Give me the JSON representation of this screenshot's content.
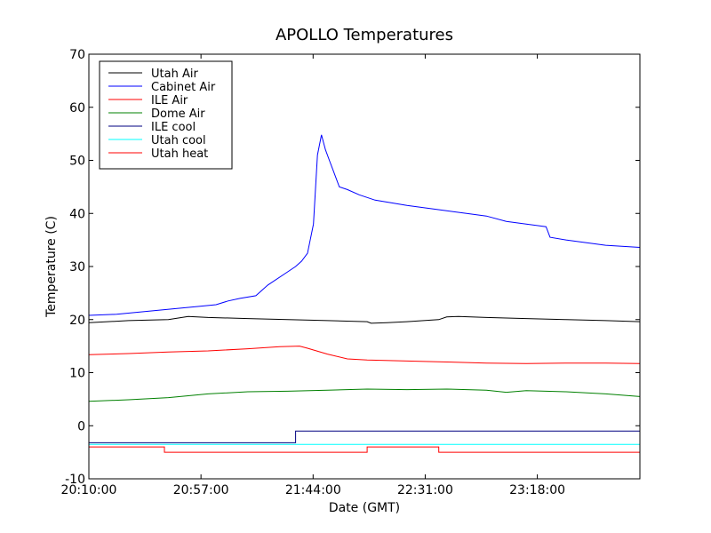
{
  "chart_data": {
    "type": "line",
    "title": "APOLLO Temperatures",
    "xlabel": "Date (GMT)",
    "ylabel": "Temperature (C)",
    "xlim": [
      0,
      13860
    ],
    "ylim": [
      -10,
      70
    ],
    "x_ticks": [
      {
        "value": 0,
        "label": "20:10:00"
      },
      {
        "value": 2820,
        "label": "20:57:00"
      },
      {
        "value": 5640,
        "label": "21:44:00"
      },
      {
        "value": 8460,
        "label": "22:31:00"
      },
      {
        "value": 11280,
        "label": "23:18:00"
      }
    ],
    "y_ticks": [
      -10,
      0,
      10,
      20,
      30,
      40,
      50,
      60,
      70
    ],
    "grid": false,
    "legend_position": "top-left",
    "series": [
      {
        "name": "Utah Air",
        "color": "#000000",
        "x": [
          0,
          1000,
          2000,
          2500,
          3000,
          4000,
          5000,
          6000,
          7000,
          7100,
          7500,
          8000,
          8800,
          9000,
          9300,
          10000,
          11000,
          12000,
          13000,
          13860
        ],
        "y": [
          19.4,
          19.8,
          20.0,
          20.6,
          20.4,
          20.2,
          20.0,
          19.8,
          19.6,
          19.3,
          19.4,
          19.6,
          20.0,
          20.5,
          20.6,
          20.4,
          20.2,
          20.0,
          19.8,
          19.6
        ]
      },
      {
        "name": "Cabinet Air",
        "color": "#0000ff",
        "x": [
          0,
          700,
          1400,
          2100,
          2800,
          3200,
          3500,
          3800,
          4200,
          4500,
          5000,
          5200,
          5350,
          5500,
          5650,
          5750,
          5850,
          5950,
          6050,
          6150,
          6300,
          6500,
          6800,
          7200,
          8000,
          9000,
          9500,
          10000,
          10500,
          11000,
          11500,
          11600,
          12000,
          12500,
          13000,
          13860
        ],
        "y": [
          20.8,
          21.0,
          21.5,
          22.0,
          22.5,
          22.8,
          23.5,
          24.0,
          24.5,
          26.5,
          29.0,
          30.0,
          31.0,
          32.5,
          38.0,
          51.0,
          54.8,
          52.0,
          50.0,
          48.0,
          45.0,
          44.5,
          43.5,
          42.5,
          41.5,
          40.5,
          40.0,
          39.5,
          38.5,
          38.0,
          37.5,
          35.5,
          35.0,
          34.5,
          34.0,
          33.6
        ]
      },
      {
        "name": "ILE Air",
        "color": "#ff0000",
        "x": [
          0,
          1000,
          2000,
          3000,
          4000,
          4800,
          5300,
          5500,
          6000,
          6500,
          7000,
          8000,
          9000,
          10000,
          11000,
          12000,
          13000,
          13860
        ],
        "y": [
          13.4,
          13.6,
          13.9,
          14.1,
          14.5,
          14.9,
          15.0,
          14.6,
          13.5,
          12.6,
          12.4,
          12.2,
          12.0,
          11.8,
          11.7,
          11.8,
          11.8,
          11.7
        ]
      },
      {
        "name": "Dome Air",
        "color": "#008000",
        "x": [
          0,
          1000,
          2000,
          3000,
          4000,
          5000,
          6000,
          7000,
          8000,
          9000,
          10000,
          10500,
          11000,
          12000,
          13000,
          13860
        ],
        "y": [
          4.6,
          4.9,
          5.3,
          6.0,
          6.4,
          6.5,
          6.7,
          6.9,
          6.8,
          6.9,
          6.7,
          6.3,
          6.6,
          6.4,
          6.0,
          5.5
        ]
      },
      {
        "name": "ILE cool",
        "color": "#000080",
        "step": true,
        "x": [
          0,
          5200,
          5200,
          13860
        ],
        "y": [
          -3.2,
          -3.2,
          -1.0,
          -1.0
        ]
      },
      {
        "name": "Utah cool",
        "color": "#00ffff",
        "x": [
          0,
          13860
        ],
        "y": [
          -3.5,
          -3.5
        ]
      },
      {
        "name": "Utah heat",
        "color": "#ff0000",
        "step": true,
        "x": [
          0,
          1900,
          1900,
          7000,
          7000,
          8800,
          8800,
          13860
        ],
        "y": [
          -4.0,
          -4.0,
          -5.0,
          -5.0,
          -4.0,
          -4.0,
          -5.0,
          -5.0
        ]
      }
    ]
  }
}
